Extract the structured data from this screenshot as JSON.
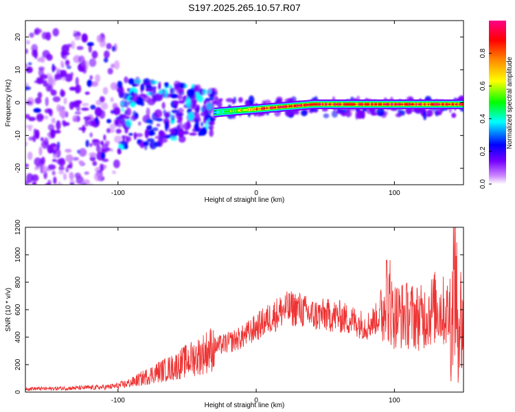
{
  "title": "S197.2025.265.10.57.R07",
  "chart_data": [
    {
      "type": "heatmap",
      "name": "spectrogram",
      "xlabel": "Height of straight line (km)",
      "ylabel": "Frequency (Hz)",
      "xlim": [
        -167,
        150
      ],
      "ylim": [
        -25,
        25
      ],
      "xticks": [
        -100,
        0,
        100
      ],
      "xtick_labels": [
        "-100",
        "0",
        "100"
      ],
      "yticks": [
        -20,
        -10,
        0,
        10,
        20
      ],
      "ytick_labels": [
        "-20",
        "-10",
        "0",
        "10",
        "20"
      ],
      "colorbar": {
        "label": "Normalized spectral amplitude",
        "range": [
          0.0,
          1.0
        ],
        "ticks": [
          0.0,
          0.2,
          0.4,
          0.6,
          0.8
        ],
        "tick_labels": [
          "0.0",
          "0.2",
          "0.4",
          "0.6",
          "0.8"
        ],
        "colors": [
          "#ffffff",
          "#cc88ff",
          "#7700ff",
          "#0000ff",
          "#00ffff",
          "#00ff00",
          "#ffff00",
          "#ff8800",
          "#ff0000",
          "#ff0088"
        ]
      },
      "ridge": {
        "description_x": [
          -30,
          150
        ],
        "freq_hz": [
          -3,
          -0.5
        ],
        "peak_amplitude": 0.95
      }
    },
    {
      "type": "line",
      "name": "snr",
      "xlabel": "Height of straight line (km)",
      "ylabel": "SNR (10 * v/v)",
      "xlim": [
        -167,
        150
      ],
      "ylim": [
        0,
        1200
      ],
      "xticks": [
        -100,
        0,
        100
      ],
      "xtick_labels": [
        "-100",
        "0",
        "100"
      ],
      "yticks": [
        0,
        200,
        400,
        600,
        800,
        1000,
        1200
      ],
      "ytick_labels": [
        "0",
        "200",
        "400",
        "600",
        "800",
        "1000",
        "1200"
      ],
      "line_color": "#ee3333",
      "series": [
        {
          "name": "SNR",
          "x": [
            -167,
            -150,
            -130,
            -110,
            -100,
            -90,
            -80,
            -70,
            -60,
            -50,
            -40,
            -30,
            -20,
            -10,
            0,
            10,
            20,
            30,
            40,
            50,
            60,
            70,
            80,
            90,
            95,
            100,
            110,
            120,
            130,
            140,
            145,
            150
          ],
          "y": [
            25,
            25,
            30,
            35,
            45,
            70,
            110,
            150,
            180,
            230,
            270,
            330,
            360,
            400,
            470,
            540,
            600,
            610,
            560,
            560,
            550,
            520,
            480,
            560,
            640,
            560,
            560,
            540,
            620,
            560,
            600,
            480
          ]
        }
      ]
    }
  ]
}
